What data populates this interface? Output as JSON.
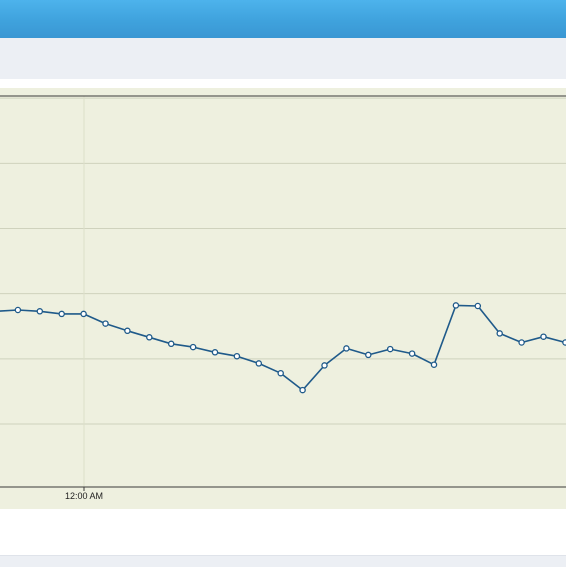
{
  "chart_data": {
    "type": "line",
    "x_ticks": [
      "12:00 AM"
    ],
    "series": [
      {
        "values": [
          37.3,
          37.5,
          37.3,
          36.9,
          36.9,
          35.4,
          34.3,
          33.3,
          32.3,
          31.8,
          31.0,
          30.4,
          29.3,
          27.8,
          25.2,
          29.0,
          31.6,
          30.6,
          31.5,
          30.8,
          29.1,
          38.2,
          38.1,
          33.9,
          32.5,
          33.4,
          32.5
        ],
        "color": "#1f5a8a"
      }
    ],
    "ylim": [
      20,
      80
    ],
    "grid": true
  },
  "colors": {
    "header_blue": "#3fa2dd",
    "plot_background": "#eef0df",
    "line": "#1f5a8a"
  }
}
